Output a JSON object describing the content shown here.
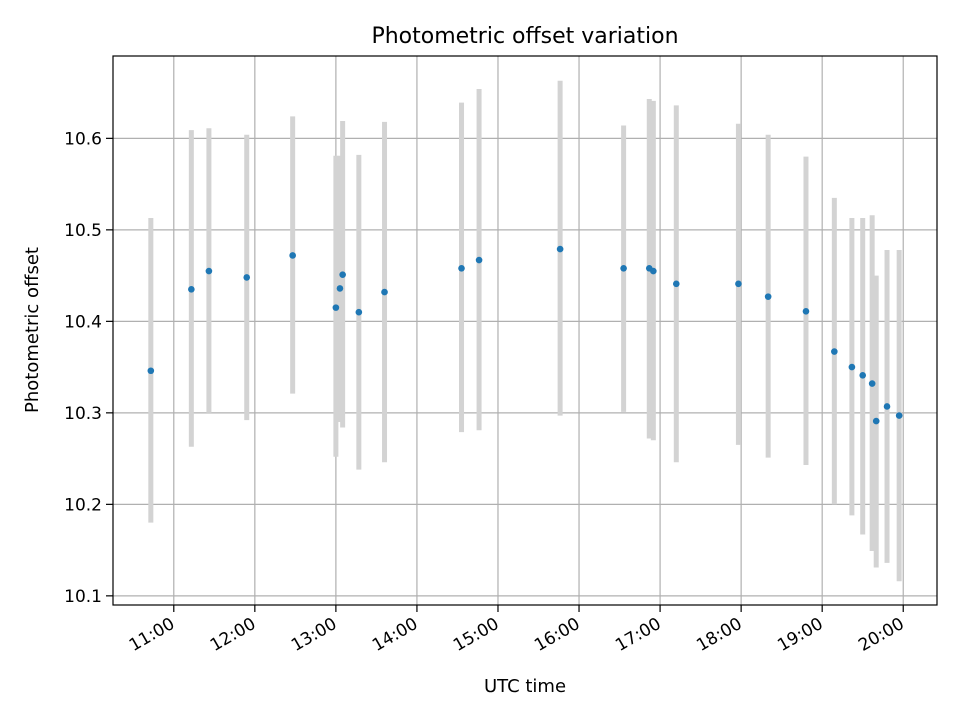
{
  "chart_data": {
    "type": "scatter",
    "title": "Photometric offset variation",
    "xlabel": "UTC time",
    "ylabel": "Photometric offset",
    "grid": true,
    "xlim": [
      "10:15",
      "20:25"
    ],
    "ylim": [
      10.09,
      10.69
    ],
    "x_ticks": [
      "11:00",
      "12:00",
      "13:00",
      "14:00",
      "15:00",
      "16:00",
      "17:00",
      "18:00",
      "19:00",
      "20:00"
    ],
    "y_ticks": [
      "10.1",
      "10.2",
      "10.3",
      "10.4",
      "10.5",
      "10.6"
    ],
    "point_color": "#1f77b4",
    "errorbar_color": "#d3d3d3",
    "points": [
      {
        "time": "10:43",
        "y": 10.346,
        "low": 10.18,
        "high": 10.513
      },
      {
        "time": "11:13",
        "y": 10.435,
        "low": 10.263,
        "high": 10.609
      },
      {
        "time": "11:26",
        "y": 10.455,
        "low": 10.3,
        "high": 10.611
      },
      {
        "time": "11:54",
        "y": 10.448,
        "low": 10.292,
        "high": 10.604
      },
      {
        "time": "12:28",
        "y": 10.472,
        "low": 10.321,
        "high": 10.624
      },
      {
        "time": "13:00",
        "y": 10.415,
        "low": 10.252,
        "high": 10.581
      },
      {
        "time": "13:03",
        "y": 10.436,
        "low": 10.29,
        "high": 10.581
      },
      {
        "time": "13:05",
        "y": 10.451,
        "low": 10.284,
        "high": 10.619
      },
      {
        "time": "13:17",
        "y": 10.41,
        "low": 10.238,
        "high": 10.582
      },
      {
        "time": "13:36",
        "y": 10.432,
        "low": 10.246,
        "high": 10.618
      },
      {
        "time": "14:33",
        "y": 10.458,
        "low": 10.279,
        "high": 10.639
      },
      {
        "time": "14:46",
        "y": 10.467,
        "low": 10.281,
        "high": 10.654
      },
      {
        "time": "15:46",
        "y": 10.479,
        "low": 10.297,
        "high": 10.663
      },
      {
        "time": "16:33",
        "y": 10.458,
        "low": 10.301,
        "high": 10.614
      },
      {
        "time": "16:52",
        "y": 10.458,
        "low": 10.272,
        "high": 10.643
      },
      {
        "time": "16:55",
        "y": 10.455,
        "low": 10.27,
        "high": 10.641
      },
      {
        "time": "17:12",
        "y": 10.441,
        "low": 10.246,
        "high": 10.636
      },
      {
        "time": "17:58",
        "y": 10.441,
        "low": 10.265,
        "high": 10.616
      },
      {
        "time": "18:20",
        "y": 10.427,
        "low": 10.251,
        "high": 10.604
      },
      {
        "time": "18:48",
        "y": 10.411,
        "low": 10.243,
        "high": 10.58
      },
      {
        "time": "19:09",
        "y": 10.367,
        "low": 10.2,
        "high": 10.535
      },
      {
        "time": "19:22",
        "y": 10.35,
        "low": 10.188,
        "high": 10.513
      },
      {
        "time": "19:30",
        "y": 10.341,
        "low": 10.167,
        "high": 10.513
      },
      {
        "time": "19:37",
        "y": 10.332,
        "low": 10.149,
        "high": 10.516
      },
      {
        "time": "19:40",
        "y": 10.291,
        "low": 10.131,
        "high": 10.45
      },
      {
        "time": "19:48",
        "y": 10.307,
        "low": 10.136,
        "high": 10.478
      },
      {
        "time": "19:57",
        "y": 10.297,
        "low": 10.116,
        "high": 10.478
      }
    ]
  }
}
